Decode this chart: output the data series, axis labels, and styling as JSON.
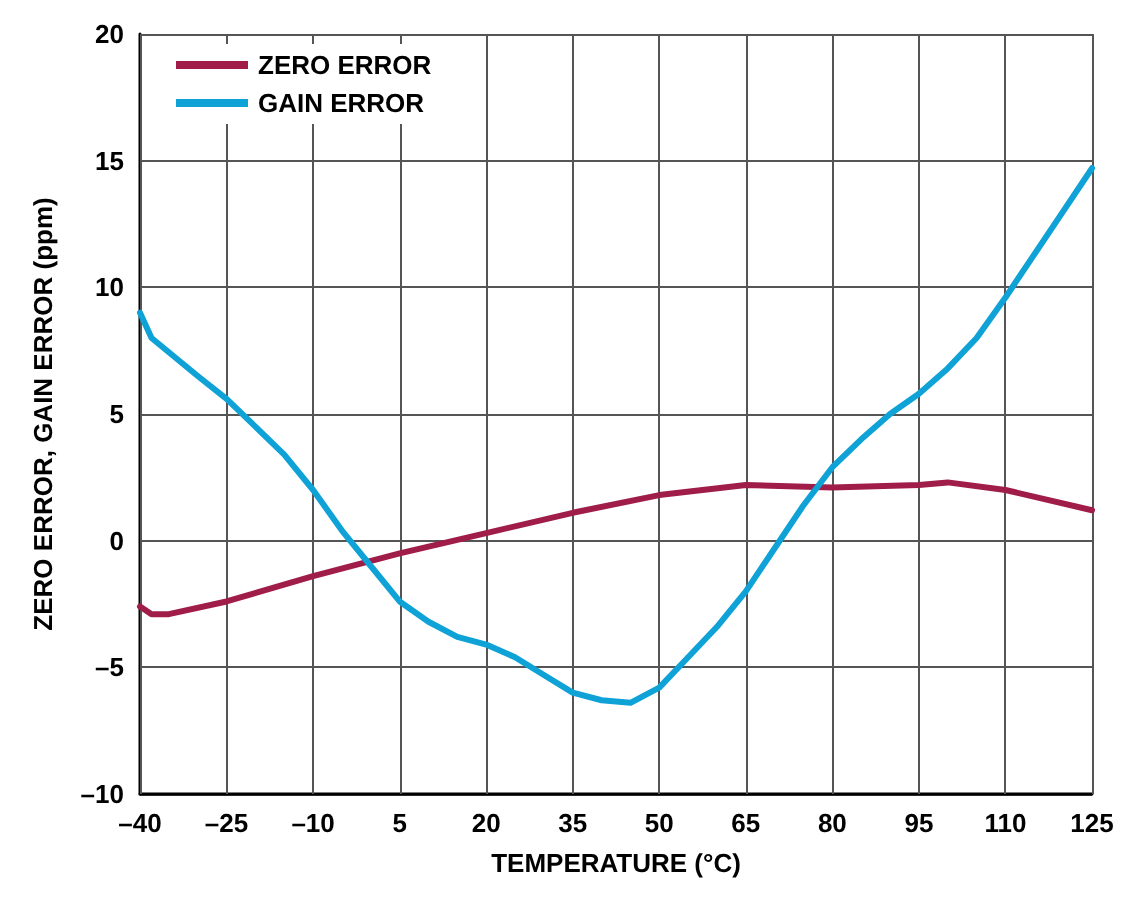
{
  "chart_data": {
    "type": "line",
    "xlabel": "TEMPERATURE (°C)",
    "ylabel": "ZERO ERROR, GAIN ERROR (ppm)",
    "xlim": [
      -40,
      125
    ],
    "xticks": [
      {
        "value": -40,
        "label": "–40"
      },
      {
        "value": -25,
        "label": "–25"
      },
      {
        "value": -10,
        "label": "–10"
      },
      5,
      20,
      35,
      50,
      65,
      80,
      95,
      110,
      125
    ],
    "ylim": [
      -10,
      20
    ],
    "yticks": [
      {
        "value": -10,
        "label": "–10"
      },
      {
        "value": -5,
        "label": "–5"
      },
      0,
      5,
      10,
      15,
      20
    ],
    "grid": true,
    "legend": "top left",
    "marker": "none",
    "line_style": "solid",
    "series": [
      {
        "name": "ZERO ERROR",
        "color": "#a01d4a",
        "x": [
          -40,
          -38,
          -35,
          -25,
          -10,
          5,
          20,
          35,
          50,
          65,
          80,
          95,
          100,
          110,
          125
        ],
        "values": [
          -2.6,
          -2.9,
          -2.9,
          -2.4,
          -1.4,
          -0.5,
          0.3,
          1.1,
          1.8,
          2.2,
          2.1,
          2.2,
          2.3,
          2.0,
          1.2
        ]
      },
      {
        "name": "GAIN ERROR",
        "color": "#0ea2d6",
        "x": [
          -40,
          -38,
          -30,
          -25,
          -20,
          -15,
          -10,
          -5,
          0,
          5,
          10,
          15,
          20,
          25,
          30,
          35,
          40,
          45,
          50,
          55,
          60,
          65,
          70,
          75,
          80,
          85,
          90,
          95,
          100,
          105,
          110,
          115,
          120,
          125
        ],
        "values": [
          9.0,
          8.0,
          6.5,
          5.6,
          4.5,
          3.4,
          2.0,
          0.4,
          -1.0,
          -2.4,
          -3.2,
          -3.8,
          -4.1,
          -4.6,
          -5.3,
          -6.0,
          -6.3,
          -6.4,
          -5.8,
          -4.6,
          -3.4,
          -2.0,
          -0.3,
          1.4,
          2.9,
          4.0,
          5.0,
          5.8,
          6.8,
          8.0,
          9.6,
          11.3,
          13.0,
          14.7
        ]
      }
    ]
  }
}
